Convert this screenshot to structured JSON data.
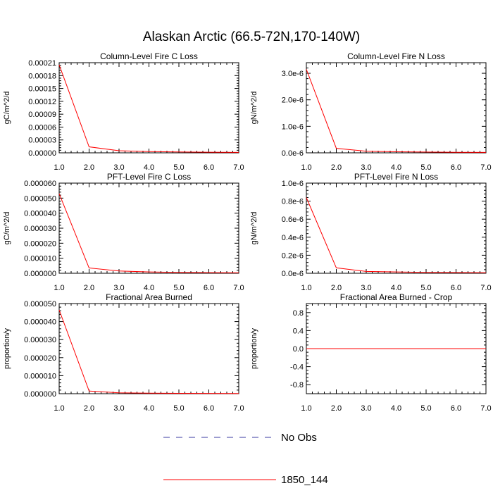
{
  "page": {
    "title": "Alaskan Arctic (66.5-72N,170-140W)"
  },
  "legend": {
    "items": [
      {
        "label": "No Obs",
        "color": "#3a3aa0",
        "style": "dashed"
      },
      {
        "label": "1850_144",
        "color": "#ff0000",
        "style": "solid"
      }
    ]
  },
  "chart_data": [
    {
      "type": "line",
      "title": "Column-Level Fire C Loss",
      "ylabel": "gC/m^2/d",
      "x": [
        1,
        2,
        3,
        4,
        5,
        6,
        7
      ],
      "xlim": [
        1,
        7
      ],
      "xticks": [
        "1.0",
        "2.0",
        "3.0",
        "4.0",
        "5.0",
        "6.0",
        "7.0"
      ],
      "ylim": [
        0,
        0.00021
      ],
      "yticks": [
        0,
        3e-05,
        6e-05,
        9e-05,
        0.00012,
        0.00015,
        0.00018,
        0.00021
      ],
      "ytick_labels": [
        "0.00000",
        "0.00003",
        "0.00006",
        "0.00009",
        "0.00012",
        "0.00015",
        "0.00018",
        "0.00021"
      ],
      "series": [
        {
          "name": "1850_144",
          "color": "#ff0000",
          "values": [
            0.000205,
            1.4e-05,
            5e-06,
            3e-06,
            2e-06,
            1.5e-06,
            1e-06
          ]
        }
      ]
    },
    {
      "type": "line",
      "title": "Column-Level Fire N Loss",
      "ylabel": "gN/m^2/d",
      "x": [
        1,
        2,
        3,
        4,
        5,
        6,
        7
      ],
      "xlim": [
        1,
        7
      ],
      "xticks": [
        "1.0",
        "2.0",
        "3.0",
        "4.0",
        "5.0",
        "6.0",
        "7.0"
      ],
      "ylim": [
        0,
        3.4e-06
      ],
      "yticks": [
        0,
        1e-06,
        2e-06,
        3e-06
      ],
      "ytick_labels": [
        "0.0e-6",
        "1.0e-6",
        "2.0e-6",
        "3.0e-6"
      ],
      "series": [
        {
          "name": "1850_144",
          "color": "#ff0000",
          "values": [
            3.15e-06,
            1.7e-07,
            6e-08,
            4e-08,
            3e-08,
            2e-08,
            1.5e-08
          ]
        }
      ]
    },
    {
      "type": "line",
      "title": "PFT-Level Fire C Loss",
      "ylabel": "gC/m^2/d",
      "x": [
        1,
        2,
        3,
        4,
        5,
        6,
        7
      ],
      "xlim": [
        1,
        7
      ],
      "xticks": [
        "1.0",
        "2.0",
        "3.0",
        "4.0",
        "5.0",
        "6.0",
        "7.0"
      ],
      "ylim": [
        0,
        6e-05
      ],
      "yticks": [
        0,
        1e-05,
        2e-05,
        3e-05,
        4e-05,
        5e-05,
        6e-05
      ],
      "ytick_labels": [
        "0.000000",
        "0.000010",
        "0.000020",
        "0.000030",
        "0.000040",
        "0.000050",
        "0.000060"
      ],
      "series": [
        {
          "name": "1850_144",
          "color": "#ff0000",
          "values": [
            5.3e-05,
            3.5e-06,
            1.5e-06,
            9e-07,
            6e-07,
            4e-07,
            3e-07
          ]
        }
      ]
    },
    {
      "type": "line",
      "title": "PFT-Level Fire N Loss",
      "ylabel": "gN/m^2/d",
      "x": [
        1,
        2,
        3,
        4,
        5,
        6,
        7
      ],
      "xlim": [
        1,
        7
      ],
      "xticks": [
        "1.0",
        "2.0",
        "3.0",
        "4.0",
        "5.0",
        "6.0",
        "7.0"
      ],
      "ylim": [
        0,
        1e-06
      ],
      "yticks": [
        0,
        2e-07,
        4e-07,
        6e-07,
        8e-07,
        1e-06
      ],
      "ytick_labels": [
        "0.0e-6",
        "0.2e-6",
        "0.4e-6",
        "0.6e-6",
        "0.8e-6",
        "1.0e-6"
      ],
      "series": [
        {
          "name": "1850_144",
          "color": "#ff0000",
          "values": [
            8.4e-07,
            6e-08,
            2e-08,
            1.5e-08,
            1e-08,
            8e-09,
            6e-09
          ]
        }
      ]
    },
    {
      "type": "line",
      "title": "Fractional Area Burned",
      "ylabel": "proportion/y",
      "x": [
        1,
        2,
        3,
        4,
        5,
        6,
        7
      ],
      "xlim": [
        1,
        7
      ],
      "xticks": [
        "1.0",
        "2.0",
        "3.0",
        "4.0",
        "5.0",
        "6.0",
        "7.0"
      ],
      "ylim": [
        0,
        5e-05
      ],
      "yticks": [
        0,
        1e-05,
        2e-05,
        3e-05,
        4e-05,
        5e-05
      ],
      "ytick_labels": [
        "0.000000",
        "0.000010",
        "0.000020",
        "0.000030",
        "0.000040",
        "0.000050"
      ],
      "series": [
        {
          "name": "1850_144",
          "color": "#ff0000",
          "values": [
            4.65e-05,
            1.5e-06,
            5e-07,
            3e-07,
            2e-07,
            1.5e-07,
            1e-07
          ]
        }
      ]
    },
    {
      "type": "line",
      "title": "Fractional Area Burned - Crop",
      "ylabel": "proportion/y",
      "x": [
        1,
        2,
        3,
        4,
        5,
        6,
        7
      ],
      "xlim": [
        1,
        7
      ],
      "xticks": [
        "1.0",
        "2.0",
        "3.0",
        "4.0",
        "5.0",
        "6.0",
        "7.0"
      ],
      "ylim": [
        -1,
        1
      ],
      "yticks": [
        -0.8,
        -0.4,
        0,
        0.4,
        0.8
      ],
      "ytick_labels": [
        "-0.8",
        "-0.4",
        "0.0",
        "0.4",
        "0.8"
      ],
      "series": [
        {
          "name": "1850_144",
          "color": "#ff0000",
          "values": [
            0,
            0,
            0,
            0,
            0,
            0,
            0
          ]
        }
      ]
    }
  ]
}
